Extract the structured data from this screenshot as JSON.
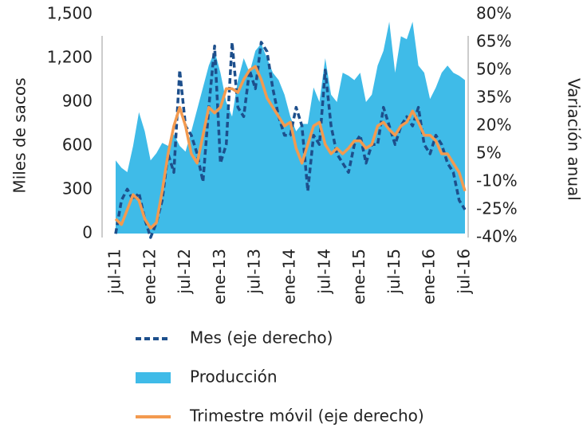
{
  "chart_data": {
    "type": "line",
    "y_label": "Miles de sacos",
    "y2_label": "Variación anual",
    "categories": [
      "jul-11",
      null,
      null,
      null,
      null,
      null,
      "ene-12",
      null,
      null,
      null,
      null,
      null,
      "jul-12",
      null,
      null,
      null,
      null,
      null,
      "ene-13",
      null,
      null,
      null,
      null,
      null,
      "jul-13",
      null,
      null,
      null,
      null,
      null,
      "ene-14",
      null,
      null,
      null,
      null,
      null,
      "jul-14",
      null,
      null,
      null,
      null,
      null,
      "ene-15",
      null,
      null,
      null,
      null,
      null,
      "jul-15",
      null,
      null,
      null,
      null,
      null,
      "ene-16",
      null,
      null,
      null,
      null,
      null,
      "jul-16"
    ],
    "ylim": [
      0,
      1500
    ],
    "yticks": [
      0,
      300,
      600,
      900,
      {
        "value": 1200,
        "label": "1,200"
      },
      {
        "value": 1500,
        "label": "1,500"
      }
    ],
    "y2lim": [
      -40,
      80
    ],
    "y2ticks": [
      {
        "value": -40,
        "label": "-40%"
      },
      {
        "value": -25,
        "label": "-25%"
      },
      {
        "value": -10,
        "label": "-10%"
      },
      {
        "value": 5,
        "label": "5%"
      },
      {
        "value": 20,
        "label": "20%"
      },
      {
        "value": 35,
        "label": "35%"
      },
      {
        "value": 50,
        "label": "50%"
      },
      {
        "value": 65,
        "label": "65%"
      },
      {
        "value": 80,
        "label": "80%"
      }
    ],
    "series": [
      {
        "name": "Mes (eje derecho)",
        "color": "#1d4f8c",
        "style": "dashed",
        "axis": "y2",
        "values": [
          -38,
          -20,
          -14,
          -20,
          -16,
          -30,
          -40,
          -32,
          -20,
          5,
          -5,
          50,
          20,
          15,
          5,
          -10,
          30,
          63,
          0,
          10,
          65,
          30,
          25,
          50,
          40,
          65,
          60,
          40,
          25,
          15,
          15,
          30,
          20,
          -15,
          15,
          10,
          50,
          20,
          5,
          0,
          -5,
          10,
          15,
          0,
          10,
          10,
          30,
          20,
          10,
          20,
          25,
          20,
          30,
          10,
          5,
          15,
          10,
          0,
          -5,
          -20,
          -25
        ]
      },
      {
        "name": "Producción",
        "color": "#3fbbe8",
        "style": "area",
        "values": [
          500,
          450,
          420,
          600,
          830,
          700,
          500,
          550,
          620,
          600,
          680,
          600,
          560,
          700,
          850,
          1000,
          1150,
          1250,
          1100,
          900,
          800,
          1050,
          1200,
          1100,
          1250,
          1300,
          1200,
          1100,
          1050,
          950,
          800,
          700,
          750,
          750,
          1000,
          900,
          1200,
          950,
          900,
          1100,
          1080,
          1050,
          1100,
          900,
          950,
          1150,
          1250,
          1450,
          1100,
          1350,
          1330,
          1450,
          1150,
          1100,
          920,
          1000,
          1100,
          1150,
          1100,
          1080,
          1050
        ]
      },
      {
        "name": "Trimestre móvil (eje derecho)",
        "color": "#f39a4f",
        "style": "solid",
        "axis": "y2",
        "values": [
          -30,
          -33,
          -25,
          -17,
          -20,
          -30,
          -35,
          -32,
          -15,
          5,
          20,
          30,
          20,
          5,
          0,
          15,
          30,
          27,
          30,
          40,
          40,
          38,
          45,
          50,
          52,
          45,
          35,
          30,
          25,
          20,
          22,
          8,
          0,
          10,
          20,
          22,
          10,
          5,
          8,
          5,
          8,
          12,
          12,
          8,
          10,
          20,
          22,
          18,
          15,
          20,
          22,
          28,
          22,
          15,
          15,
          12,
          5,
          5,
          0,
          -5,
          -15
        ]
      }
    ]
  }
}
